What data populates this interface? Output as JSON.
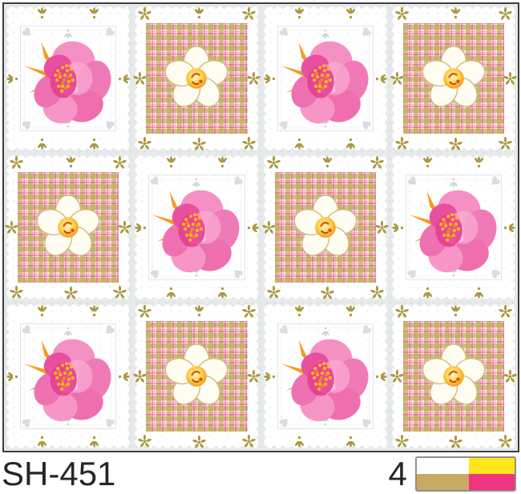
{
  "product": {
    "code": "SH-451",
    "colorway_count": "4"
  },
  "swatch": {
    "border": "#8f8f8f",
    "colors": {
      "white": "#ffffff",
      "yellow": "#ffe51c",
      "khaki": "#c8ab63",
      "magenta": "#f0337f"
    }
  },
  "pattern": {
    "rows": 3,
    "cols": 4,
    "grid": [
      [
        "lace",
        "plaid",
        "lace",
        "plaid"
      ],
      [
        "plaid",
        "lace",
        "plaid",
        "lace"
      ],
      [
        "lace",
        "plaid",
        "lace",
        "plaid"
      ]
    ],
    "tile_types": {
      "lace": {
        "label": "white lace square with pink blossom"
      },
      "plaid": {
        "label": "khaki-pink gingham square with cream blossom"
      }
    },
    "colors": {
      "gutter": "#e7eaea",
      "lace_white": "#ffffff",
      "lace_gray": "#dcdfe2",
      "gold_motif": "#ab9840",
      "plaid_bg": "#fbf8f0",
      "plaid_khaki": "#c3ae5f",
      "plaid_pink": "#ee3490",
      "plaid_pink_light": "#f69cca",
      "flower_pink": "#f07ab8",
      "flower_pink_deep": "#e63e94",
      "flower_stamen": "#ffb41e",
      "flower_sepal_orange": "#f59b1c",
      "flower_cream": "#fffdf2",
      "flower_center_yellow": "#ffd24b",
      "border_dark": "#3e3e3e"
    }
  }
}
